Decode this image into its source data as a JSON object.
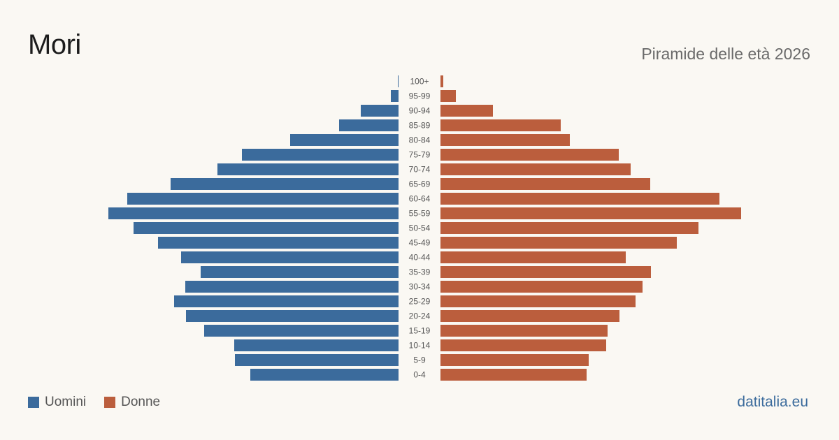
{
  "header": {
    "title": "Mori",
    "subtitle": "Piramide delle età 2026"
  },
  "legend": {
    "men_label": "Uomini",
    "women_label": "Donne"
  },
  "source": {
    "label": "datitalia.eu"
  },
  "colors": {
    "men": "#3b6b9c",
    "women": "#bb5e3d",
    "background": "#faf8f3"
  },
  "chart_data": {
    "type": "bar",
    "orientation": "horizontal-diverging",
    "categories": [
      "100+",
      "95-99",
      "90-94",
      "85-89",
      "80-84",
      "75-79",
      "70-74",
      "65-69",
      "60-64",
      "55-59",
      "50-54",
      "45-49",
      "40-44",
      "35-39",
      "30-34",
      "25-29",
      "20-24",
      "15-19",
      "10-14",
      "5-9",
      "0-4"
    ],
    "series": [
      {
        "name": "Uomini",
        "values": [
          1,
          11,
          54,
          85,
          155,
          224,
          259,
          326,
          388,
          415,
          379,
          344,
          311,
          283,
          305,
          321,
          304,
          278,
          235,
          234,
          212
        ]
      },
      {
        "name": "Donne",
        "values": [
          4,
          22,
          75,
          172,
          185,
          255,
          272,
          300,
          399,
          430,
          369,
          338,
          265,
          301,
          289,
          279,
          256,
          239,
          237,
          212,
          209
        ]
      }
    ],
    "xlim": [
      0,
      430
    ],
    "grid": false,
    "legend_position": "bottom-left"
  }
}
